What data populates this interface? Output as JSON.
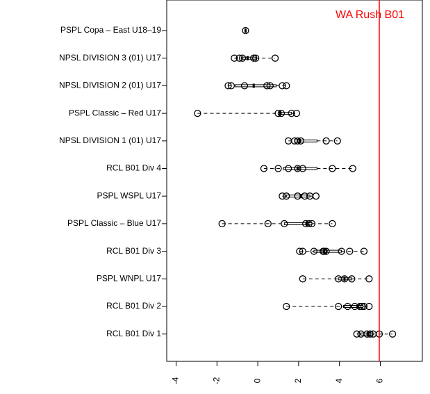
{
  "chart_data": {
    "type": "boxplot",
    "categories": [
      "PSPL Copa – East U18–19",
      "NPSL DIVISION 3 (01) U17",
      "NPSL DIVISION 2 (01) U17",
      "PSPL Classic – Red U17",
      "NPSL DIVISION 1 (01) U17",
      "RCL B01 Div 4",
      "PSPL WSPL U17",
      "PSPL Classic – Blue U17",
      "RCL B01 Div 3",
      "PSPL WNPL U17",
      "RCL B01 Div 2",
      "RCL B01 Div 1"
    ],
    "boxes": [
      [
        -0.6,
        -0.6,
        -0.6,
        -0.6,
        -0.6
      ],
      [
        -1.15,
        -0.8,
        -0.5,
        -0.1,
        0.85
      ],
      [
        -1.45,
        -1.1,
        -0.2,
        0.9,
        1.4
      ],
      [
        -2.95,
        1.0,
        1.1,
        1.65,
        1.9
      ],
      [
        1.5,
        1.8,
        2.05,
        2.9,
        3.9
      ],
      [
        0.3,
        1.25,
        1.95,
        2.9,
        4.65
      ],
      [
        1.2,
        1.4,
        2.1,
        2.55,
        2.85
      ],
      [
        -1.75,
        1.3,
        2.4,
        2.65,
        3.65
      ],
      [
        2.05,
        2.75,
        3.25,
        4.1,
        5.2
      ],
      [
        2.2,
        3.95,
        4.25,
        4.6,
        5.45
      ],
      [
        1.4,
        4.2,
        4.9,
        5.15,
        5.45
      ],
      [
        4.85,
        5.05,
        5.4,
        5.6,
        6.6
      ]
    ],
    "points": [
      [
        -0.6
      ],
      [
        -1.15,
        -0.9,
        -0.75,
        -0.2,
        -0.1,
        0.85
      ],
      [
        -1.45,
        -1.3,
        -0.65,
        0.45,
        0.6,
        1.2,
        1.4
      ],
      [
        -2.95,
        1.0,
        1.15,
        1.65,
        1.9
      ],
      [
        1.5,
        1.8,
        1.95,
        2.1,
        3.35,
        3.9
      ],
      [
        0.3,
        1.0,
        1.5,
        1.95,
        2.2,
        3.65,
        4.65
      ],
      [
        1.2,
        1.4,
        1.95,
        2.3,
        2.55,
        2.85
      ],
      [
        -1.75,
        0.5,
        1.3,
        2.35,
        2.5,
        2.65,
        3.65
      ],
      [
        2.05,
        2.2,
        2.75,
        3.2,
        3.25,
        3.35,
        4.1,
        4.5,
        5.2
      ],
      [
        2.2,
        3.95,
        4.25,
        4.6,
        5.45
      ],
      [
        1.4,
        3.95,
        4.4,
        4.75,
        5.0,
        5.1,
        5.2,
        5.45
      ],
      [
        4.85,
        5.05,
        5.35,
        5.5,
        5.65,
        5.95,
        6.6
      ]
    ],
    "reference": {
      "value": 5.95,
      "label": "WA Rush B01",
      "color": "#ff0000"
    },
    "xlim": [
      -4.46,
      8.06
    ],
    "xticks": [
      -4,
      -2,
      0,
      2,
      4,
      6
    ]
  }
}
